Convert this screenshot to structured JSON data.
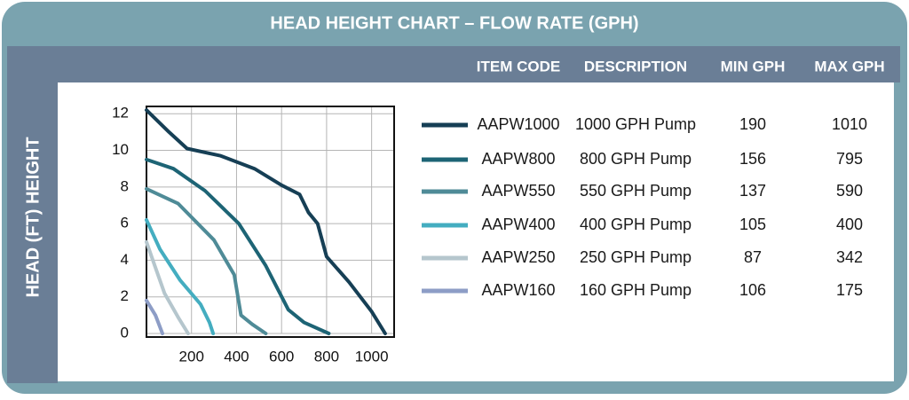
{
  "chart_data": {
    "type": "line",
    "title": "HEAD HEIGHT CHART – FLOW RATE (GPH)",
    "y_label": "HEAD (FT) HEIGHT",
    "columns": [
      "ITEM CODE",
      "DESCRIPTION",
      "MIN GPH",
      "MAX GPH"
    ],
    "xlim": [
      0,
      1100
    ],
    "ylim": [
      0,
      12.4
    ],
    "xticks": [
      200,
      400,
      600,
      800,
      1000
    ],
    "yticks": [
      0,
      2,
      4,
      6,
      8,
      10,
      12
    ],
    "grid": true,
    "series": [
      {
        "name": "AAPW1000",
        "description": "1000 GPH Pump",
        "min_gph": 190,
        "max_gph": 1010,
        "color": "#163f55",
        "x": [
          0,
          100,
          180,
          330,
          480,
          600,
          680,
          720,
          760,
          800,
          900,
          1000,
          1060
        ],
        "values": [
          12.2,
          11,
          10.1,
          9.7,
          9,
          8.1,
          7.6,
          6.6,
          6,
          4.2,
          2.8,
          1.2,
          0
        ]
      },
      {
        "name": "AAPW800",
        "description": "800 GPH Pump",
        "min_gph": 156,
        "max_gph": 795,
        "color": "#1d6475",
        "x": [
          0,
          120,
          260,
          410,
          530,
          630,
          700,
          810
        ],
        "values": [
          9.5,
          9,
          7.8,
          6,
          3.7,
          1.3,
          0.6,
          0
        ]
      },
      {
        "name": "AAPW550",
        "description": "550 GPH Pump",
        "min_gph": 137,
        "max_gph": 590,
        "color": "#4f8b97",
        "x": [
          0,
          140,
          300,
          390,
          420,
          470,
          530
        ],
        "values": [
          7.9,
          7.1,
          5.1,
          3.2,
          1,
          0.5,
          0
        ]
      },
      {
        "name": "AAPW400",
        "description": "400 GPH Pump",
        "min_gph": 105,
        "max_gph": 400,
        "color": "#44adc0",
        "x": [
          0,
          60,
          150,
          240,
          280,
          296
        ],
        "values": [
          6.2,
          4.6,
          2.9,
          1.6,
          0.6,
          0
        ]
      },
      {
        "name": "AAPW250",
        "description": "250 GPH Pump",
        "min_gph": 87,
        "max_gph": 342,
        "color": "#b5c6cd",
        "x": [
          0,
          40,
          80,
          140,
          185
        ],
        "values": [
          5,
          3.6,
          2.2,
          0.9,
          0
        ]
      },
      {
        "name": "AAPW160",
        "description": "160 GPH Pump",
        "min_gph": 106,
        "max_gph": 175,
        "color": "#8d9dc6",
        "x": [
          0,
          40,
          71
        ],
        "values": [
          1.8,
          1,
          0
        ]
      }
    ]
  }
}
